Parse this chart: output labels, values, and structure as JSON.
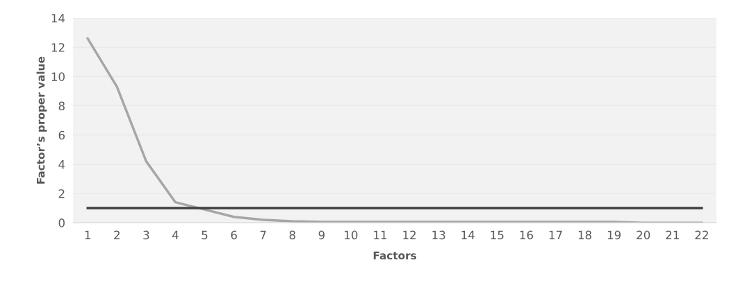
{
  "chart_data": {
    "type": "line",
    "xlabel": "Factors",
    "ylabel": "Factor’s proper value",
    "categories": [
      "1",
      "2",
      "3",
      "4",
      "5",
      "6",
      "7",
      "8",
      "9",
      "10",
      "11",
      "12",
      "13",
      "14",
      "15",
      "16",
      "17",
      "18",
      "19",
      "20",
      "21",
      "22"
    ],
    "series": [
      {
        "color": "#a6a6a6",
        "values": [
          12.6,
          9.3,
          4.2,
          1.4,
          0.9,
          0.4,
          0.2,
          0.1,
          0.05,
          0.05,
          0.05,
          0.05,
          0.05,
          0.05,
          0.05,
          0.05,
          0.05,
          0.05,
          0.05,
          0,
          0,
          0
        ]
      },
      {
        "color": "#404040",
        "values": [
          1,
          1,
          1,
          1,
          1,
          1,
          1,
          1,
          1,
          1,
          1,
          1,
          1,
          1,
          1,
          1,
          1,
          1,
          1,
          1,
          1,
          1
        ]
      }
    ],
    "ylim": [
      0,
      14
    ],
    "yticks": [
      0,
      2,
      4,
      6,
      8,
      10,
      12,
      14
    ],
    "grid": "y",
    "legend": false,
    "marker": "none"
  }
}
